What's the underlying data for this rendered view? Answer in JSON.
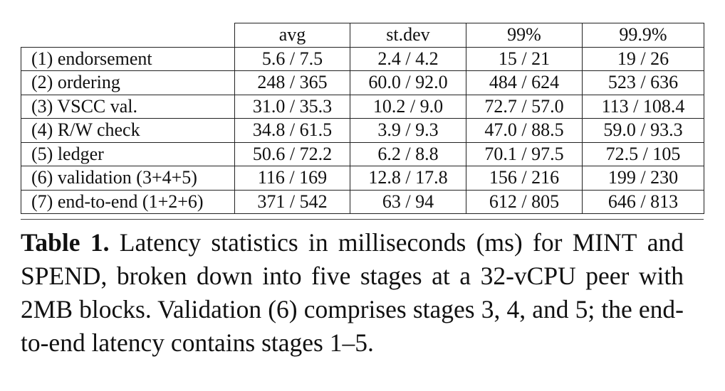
{
  "table": {
    "columns": [
      "avg",
      "st.dev",
      "99%",
      "99.9%"
    ],
    "rows": [
      {
        "label": "(1) endorsement",
        "values": [
          "5.6 / 7.5",
          "2.4 / 4.2",
          "15 / 21",
          "19 / 26"
        ]
      },
      {
        "label": "(2) ordering",
        "values": [
          "248 / 365",
          "60.0 / 92.0",
          "484 / 624",
          "523 / 636"
        ]
      },
      {
        "label": "(3) VSCC val.",
        "values": [
          "31.0 / 35.3",
          "10.2 / 9.0",
          "72.7 / 57.0",
          "113 / 108.4"
        ]
      },
      {
        "label": "(4) R/W check",
        "values": [
          "34.8 / 61.5",
          "3.9 / 9.3",
          "47.0 / 88.5",
          "59.0 / 93.3"
        ]
      },
      {
        "label": "(5) ledger",
        "values": [
          "50.6 / 72.2",
          "6.2 / 8.8",
          "70.1 / 97.5",
          "72.5 / 105"
        ]
      },
      {
        "label": "(6) validation (3+4+5)",
        "values": [
          "116 / 169",
          "12.8 / 17.8",
          "156 / 216",
          "199 / 230"
        ]
      },
      {
        "label": "(7) end-to-end (1+2+6)",
        "values": [
          "371 / 542",
          "63 / 94",
          "612 / 805",
          "646 / 813"
        ]
      }
    ]
  },
  "caption": {
    "label": "Table 1.",
    "part1": " Latency statistics in milliseconds (ms) for ",
    "mint": "MINT",
    "part2": " and ",
    "spend": "SPEND",
    "part3": ", broken down into five stages at a 32-vCPU peer with 2MB blocks. Validation (6) comprises stages 3, 4, and 5; the end-to-end latency contains stages 1–5."
  }
}
